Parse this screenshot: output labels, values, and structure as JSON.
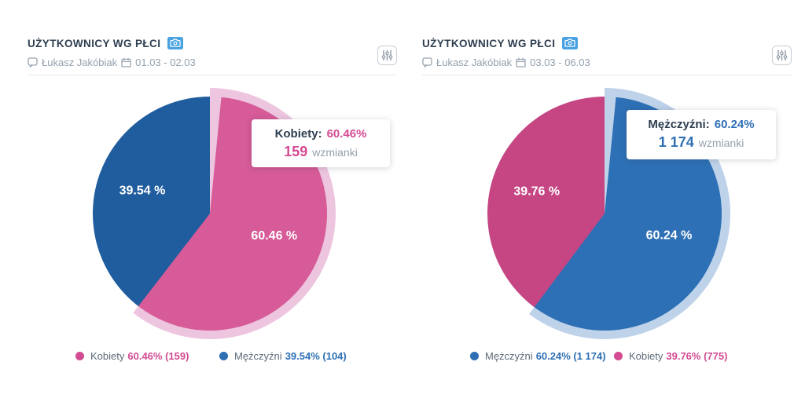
{
  "chart_data": [
    {
      "type": "pie",
      "title": "UŻYTKOWNICY WG PŁCI",
      "slices": [
        {
          "label": "Kobiety",
          "percent": 60.46,
          "count": "159",
          "value_label": "60.46 %",
          "color": "#d65b98",
          "halo": "#eec5df",
          "hovered": true
        },
        {
          "label": "Mężczyźni",
          "percent": 39.54,
          "count": "104",
          "value_label": "39.54 %",
          "color": "#205d9e",
          "halo": "#bed2e9",
          "hovered": false
        }
      ]
    },
    {
      "type": "pie",
      "title": "UŻYTKOWNICY WG PŁCI",
      "slices": [
        {
          "label": "Mężczyźni",
          "percent": 60.24,
          "count": "1 174",
          "value_label": "60.24 %",
          "color": "#2e70b5",
          "halo": "#bed2e9",
          "hovered": true
        },
        {
          "label": "Kobiety",
          "percent": 39.76,
          "count": "775",
          "value_label": "39.76 %",
          "color": "#c54683",
          "halo": "#eec5df",
          "hovered": false
        }
      ]
    }
  ],
  "panels": [
    {
      "title": "UŻYTKOWNICY WG PŁCI",
      "author": "Łukasz Jakóbiak",
      "date_range": "01.03 - 02.03",
      "tooltip": {
        "label": "Kobiety:",
        "percent": "60.46%",
        "count": "159",
        "unit": "wzmianki",
        "color": "#d34b92"
      },
      "legend": [
        {
          "name": "Kobiety",
          "stats": "60.46% (159)",
          "color": "#d34b92"
        },
        {
          "name": "Mężczyźni",
          "stats": "39.54% (104)",
          "color": "#2e6fb4"
        }
      ]
    },
    {
      "title": "UŻYTKOWNICY WG PŁCI",
      "author": "Łukasz Jakóbiak",
      "date_range": "03.03 - 06.03",
      "tooltip": {
        "label": "Mężczyźni:",
        "percent": "60.24%",
        "count": "1 174",
        "unit": "wzmianki",
        "color": "#2e6fb4"
      },
      "legend": [
        {
          "name": "Mężczyźni",
          "stats": "60.24% (1 174)",
          "color": "#2e6fb4"
        },
        {
          "name": "Kobiety",
          "stats": "39.76% (775)",
          "color": "#d34b92"
        }
      ]
    }
  ]
}
